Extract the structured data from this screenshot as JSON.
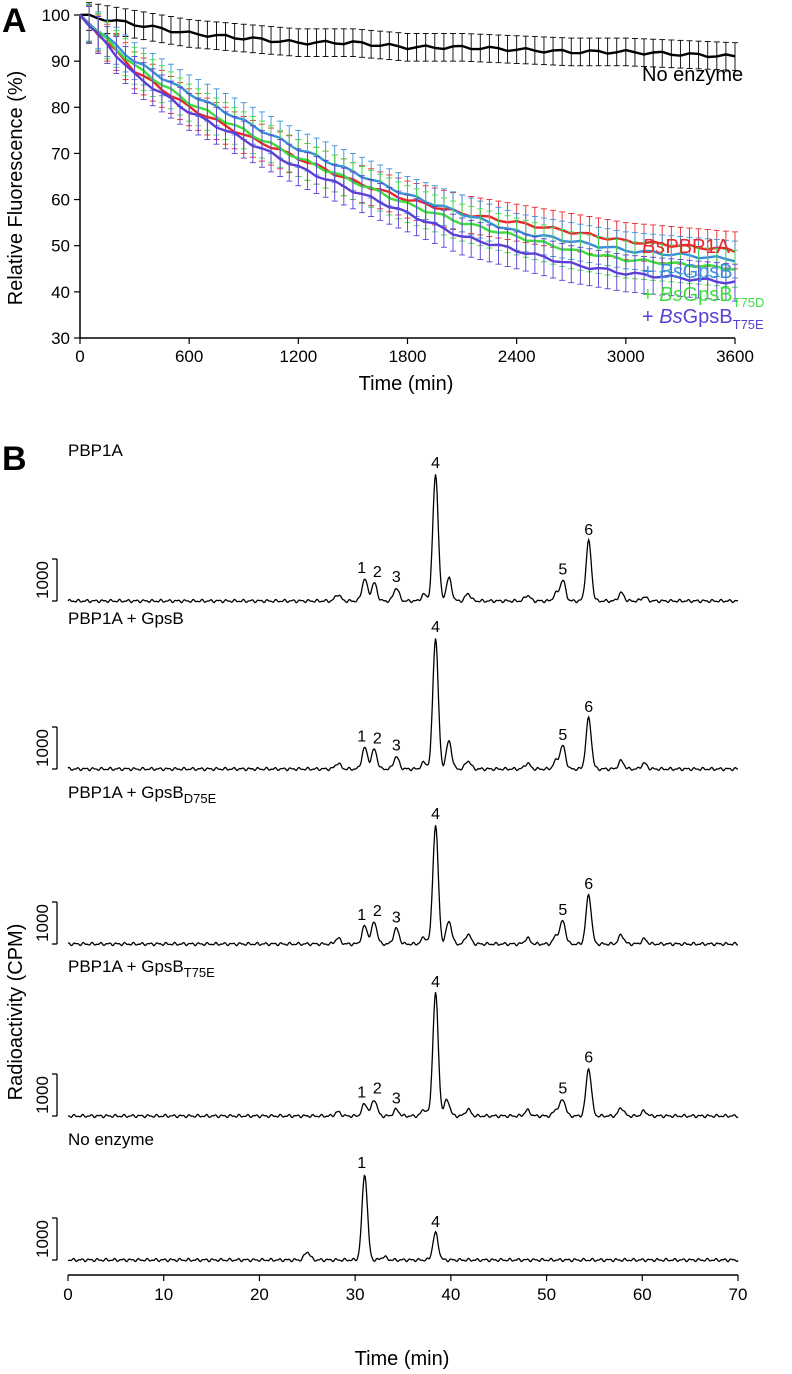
{
  "chart_data": [
    {
      "panel": "A",
      "type": "line",
      "xlabel": "Time (min)",
      "ylabel": "Relative Fluorescence (%)",
      "xlim": [
        0,
        3600
      ],
      "ylim": [
        30,
        100
      ],
      "xticks": [
        0,
        600,
        1200,
        1800,
        2400,
        3000,
        3600
      ],
      "yticks": [
        30,
        40,
        50,
        60,
        70,
        80,
        90,
        100
      ],
      "error_bars": true,
      "series": [
        {
          "name": "No enzyme",
          "color": "#000000",
          "x": [
            0,
            300,
            600,
            900,
            1200,
            1500,
            1800,
            2100,
            2400,
            2700,
            3000,
            3300,
            3600
          ],
          "y": [
            100,
            98,
            96,
            95,
            94,
            94,
            93,
            93,
            92.5,
            92,
            92,
            91.5,
            91
          ],
          "err": 3
        },
        {
          "name_parts": [
            {
              "t": "Bs",
              "i": true
            },
            {
              "t": "PBP1A",
              "i": false
            }
          ],
          "color": "#e8262b",
          "x": [
            0,
            300,
            600,
            900,
            1200,
            1500,
            1800,
            2100,
            2400,
            2700,
            3000,
            3300,
            3600
          ],
          "y": [
            100,
            88,
            80,
            74,
            69,
            64,
            60,
            57,
            55,
            53,
            51,
            50,
            49
          ],
          "err": 4
        },
        {
          "prefix": "+ ",
          "name_parts": [
            {
              "t": "Bs",
              "i": true
            },
            {
              "t": "GpsB",
              "i": false
            }
          ],
          "color": "#3a8fd9",
          "x": [
            0,
            300,
            600,
            900,
            1200,
            1500,
            1800,
            2100,
            2400,
            2700,
            3000,
            3300,
            3600
          ],
          "y": [
            100,
            90,
            83,
            77,
            71,
            66,
            61,
            57,
            53,
            51,
            49,
            48,
            47
          ],
          "err": 4
        },
        {
          "prefix": "+ ",
          "name_parts": [
            {
              "t": "Bs",
              "i": true
            },
            {
              "t": "GpsB",
              "i": false
            }
          ],
          "subscript": "T75D",
          "color": "#3fdc3f",
          "x": [
            0,
            300,
            600,
            900,
            1200,
            1500,
            1800,
            2100,
            2400,
            2700,
            3000,
            3300,
            3600
          ],
          "y": [
            100,
            89,
            81,
            75,
            69,
            64,
            59,
            55,
            52,
            49,
            47,
            46,
            45
          ],
          "err": 4
        },
        {
          "prefix": "+ ",
          "name_parts": [
            {
              "t": "Bs",
              "i": true
            },
            {
              "t": "GpsB",
              "i": false
            }
          ],
          "subscript": "T75E",
          "color": "#5b3fd6",
          "x": [
            0,
            300,
            600,
            900,
            1200,
            1500,
            1800,
            2100,
            2400,
            2700,
            3000,
            3300,
            3600
          ],
          "y": [
            100,
            87,
            79,
            73,
            67,
            62,
            57,
            52,
            49,
            46,
            44,
            43,
            42
          ],
          "err": 4
        }
      ]
    },
    {
      "panel": "B",
      "type": "line",
      "xlabel": "Time (min)",
      "ylabel": "Radioactivity (CPM)",
      "xlim": [
        0,
        70
      ],
      "xticks": [
        0,
        10,
        20,
        30,
        40,
        50,
        60,
        70
      ],
      "scale_bar_label": "1000",
      "traces": [
        {
          "label": "PBP1A",
          "label_sub": "",
          "peaks": [
            {
              "n": "1",
              "x": 31.0,
              "h": 0.27
            },
            {
              "n": "2",
              "x": 32.0,
              "h": 0.22
            },
            {
              "n": "3",
              "x": 34.3,
              "h": 0.16
            },
            {
              "n": "4",
              "x": 38.4,
              "h": 1.55
            },
            {
              "n": "5",
              "x": 51.7,
              "h": 0.25
            },
            {
              "n": "6",
              "x": 54.4,
              "h": 0.73
            }
          ],
          "minor": [
            {
              "x": 28.2,
              "h": 0.08
            },
            {
              "x": 37.2,
              "h": 0.08
            },
            {
              "x": 39.8,
              "h": 0.28
            },
            {
              "x": 41.8,
              "h": 0.09
            },
            {
              "x": 48.0,
              "h": 0.07
            },
            {
              "x": 51.0,
              "h": 0.09
            },
            {
              "x": 57.8,
              "h": 0.1
            },
            {
              "x": 60.2,
              "h": 0.05
            }
          ]
        },
        {
          "label": "PBP1A + GpsB",
          "label_sub": "",
          "peaks": [
            {
              "n": "1",
              "x": 31.0,
              "h": 0.26
            },
            {
              "n": "2",
              "x": 32.0,
              "h": 0.24
            },
            {
              "n": "3",
              "x": 34.3,
              "h": 0.15
            },
            {
              "n": "4",
              "x": 38.4,
              "h": 1.6
            },
            {
              "n": "5",
              "x": 51.7,
              "h": 0.28
            },
            {
              "n": "6",
              "x": 54.4,
              "h": 0.62
            }
          ],
          "minor": [
            {
              "x": 28.2,
              "h": 0.07
            },
            {
              "x": 37.2,
              "h": 0.08
            },
            {
              "x": 39.8,
              "h": 0.34
            },
            {
              "x": 41.8,
              "h": 0.1
            },
            {
              "x": 48.0,
              "h": 0.07
            },
            {
              "x": 51.0,
              "h": 0.1
            },
            {
              "x": 57.8,
              "h": 0.1
            },
            {
              "x": 60.2,
              "h": 0.07
            }
          ]
        },
        {
          "label": "PBP1A + GpsB",
          "label_sub": "D75E",
          "peaks": [
            {
              "n": "1",
              "x": 31.0,
              "h": 0.22
            },
            {
              "n": "2",
              "x": 32.0,
              "h": 0.27
            },
            {
              "n": "3",
              "x": 34.3,
              "h": 0.19
            },
            {
              "n": "4",
              "x": 38.4,
              "h": 1.45
            },
            {
              "n": "5",
              "x": 51.7,
              "h": 0.28
            },
            {
              "n": "6",
              "x": 54.4,
              "h": 0.6
            }
          ],
          "minor": [
            {
              "x": 28.2,
              "h": 0.07
            },
            {
              "x": 37.2,
              "h": 0.08
            },
            {
              "x": 39.8,
              "h": 0.28
            },
            {
              "x": 41.8,
              "h": 0.12
            },
            {
              "x": 48.0,
              "h": 0.07
            },
            {
              "x": 51.0,
              "h": 0.1
            },
            {
              "x": 57.8,
              "h": 0.11
            },
            {
              "x": 60.2,
              "h": 0.06
            }
          ]
        },
        {
          "label": "PBP1A + GpsB",
          "label_sub": "T75E",
          "peaks": [
            {
              "n": "1",
              "x": 31.0,
              "h": 0.15
            },
            {
              "n": "2",
              "x": 32.0,
              "h": 0.2
            },
            {
              "n": "3",
              "x": 34.3,
              "h": 0.08
            },
            {
              "n": "4",
              "x": 38.4,
              "h": 1.5
            },
            {
              "n": "5",
              "x": 51.7,
              "h": 0.2
            },
            {
              "n": "6",
              "x": 54.4,
              "h": 0.58
            }
          ],
          "minor": [
            {
              "x": 28.2,
              "h": 0.05
            },
            {
              "x": 37.2,
              "h": 0.08
            },
            {
              "x": 39.6,
              "h": 0.2
            },
            {
              "x": 41.8,
              "h": 0.08
            },
            {
              "x": 48.0,
              "h": 0.07
            },
            {
              "x": 51.0,
              "h": 0.08
            },
            {
              "x": 57.8,
              "h": 0.1
            },
            {
              "x": 60.2,
              "h": 0.06
            }
          ]
        },
        {
          "label": "No enzyme",
          "label_sub": "",
          "peaks": [
            {
              "n": "1",
              "x": 31.0,
              "h": 1.05
            },
            {
              "n": "4",
              "x": 38.4,
              "h": 0.33
            }
          ],
          "minor": [
            {
              "x": 25.0,
              "h": 0.1
            },
            {
              "x": 33.0,
              "h": 0.04
            }
          ]
        }
      ]
    }
  ]
}
